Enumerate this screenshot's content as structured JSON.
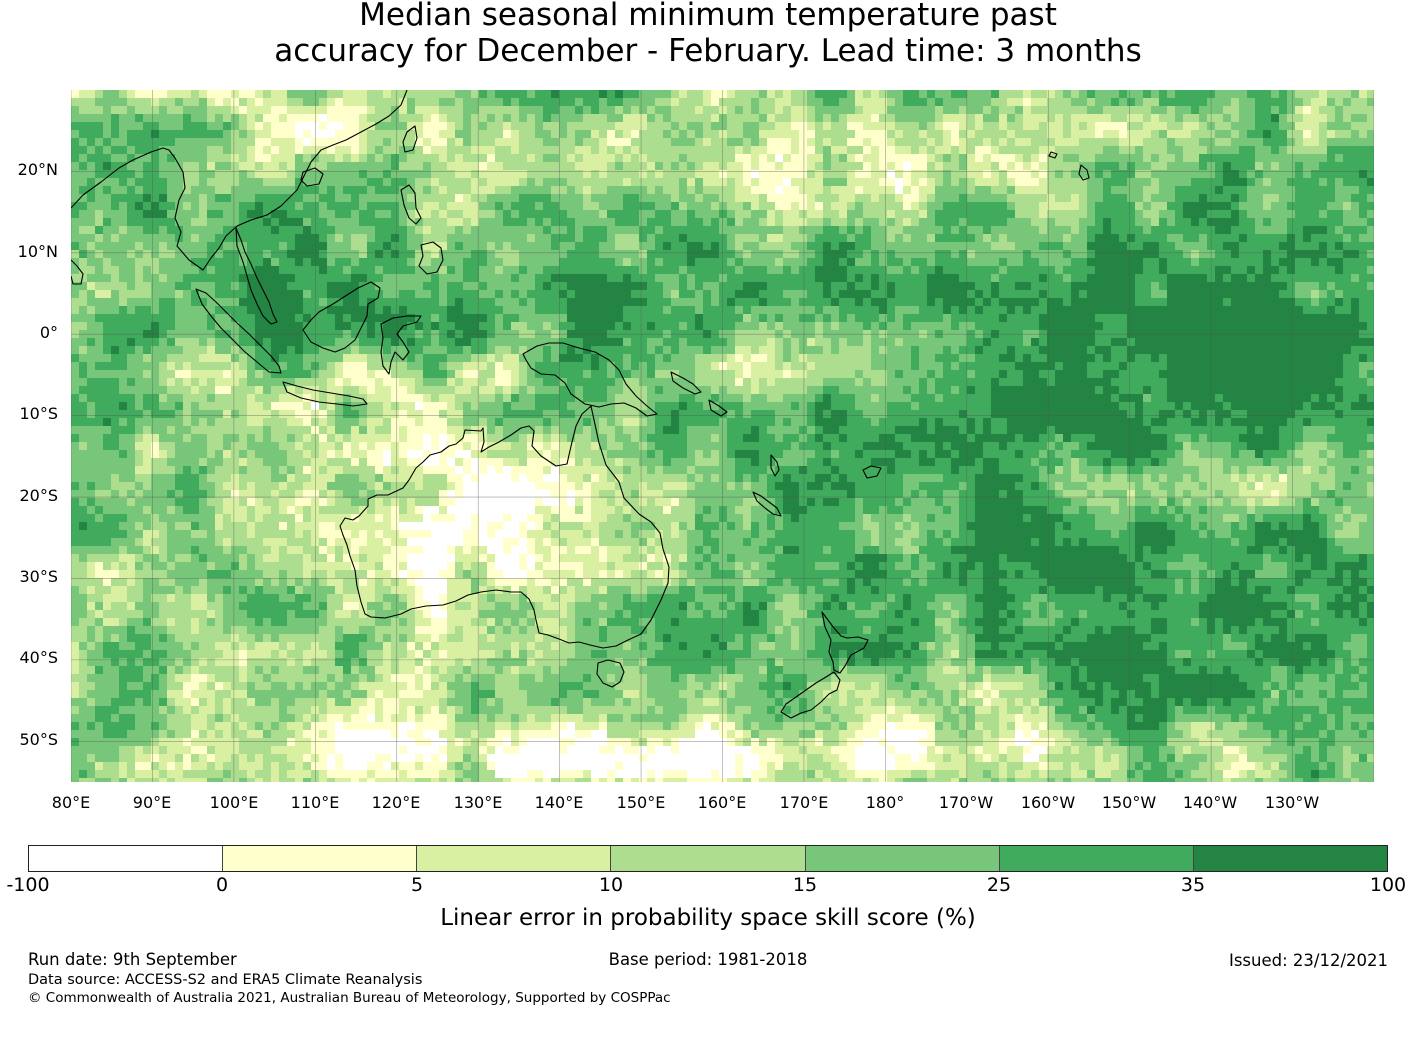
{
  "title": {
    "line1": "Median seasonal minimum temperature past",
    "line2": "accuracy for December - February. Lead time: 3 months"
  },
  "map": {
    "projection": "equirectangular",
    "lon_range": [
      80,
      240
    ],
    "lat_range": [
      -55,
      30
    ],
    "lat_labels": [
      "20°N",
      "10°N",
      "0°",
      "10°S",
      "20°S",
      "30°S",
      "40°S",
      "50°S"
    ],
    "lon_labels": [
      "80°E",
      "90°E",
      "100°E",
      "110°E",
      "120°E",
      "130°E",
      "140°E",
      "150°E",
      "160°E",
      "170°E",
      "180°",
      "170°W",
      "160°W",
      "150°W",
      "140°W",
      "130°W"
    ],
    "coastline_color": "#000000",
    "gridline_color": "#555555"
  },
  "colorbar": {
    "tick_labels": [
      "-100",
      "0",
      "5",
      "10",
      "15",
      "25",
      "35",
      "100"
    ],
    "colors": [
      "#ffffff",
      "#ffffcc",
      "#d9f0a3",
      "#addd8e",
      "#78c679",
      "#41ab5d",
      "#238443"
    ],
    "label": "Linear error in probability space skill score (%)"
  },
  "footer": {
    "run_date": "Run date: 9th September",
    "base_period": "Base period: 1981-2018",
    "issued": "Issued: 23/12/2021",
    "data_source": "Data source: ACCESS-S2 and ERA5 Climate Reanalysis",
    "copyright": "© Commonwealth of Australia 2021, Australian Bureau of Meteorology, Supported by COSPPac"
  }
}
